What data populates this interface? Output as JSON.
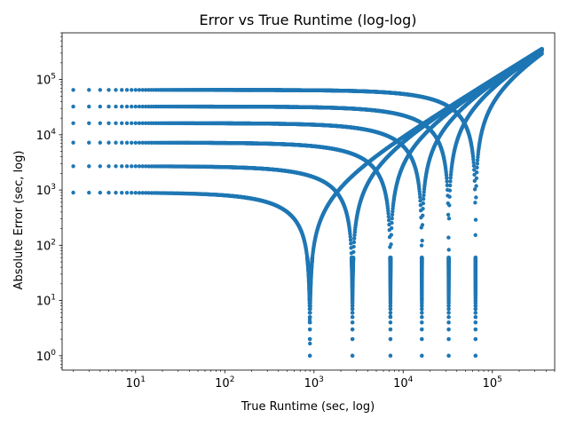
{
  "chart_data": {
    "type": "scatter",
    "title": "Error vs True Runtime (log-log)",
    "xlabel": "True Runtime (sec, log)",
    "ylabel": "Absolute Error (sec, log)",
    "xscale": "log",
    "yscale": "log",
    "xlim": [
      1.5,
      500000
    ],
    "ylim": [
      0.55,
      700000
    ],
    "grid": false,
    "legend": "none",
    "point_color": "#1f77b4",
    "x_ticks": [
      {
        "value": 10,
        "base": "10",
        "exp": "1"
      },
      {
        "value": 100,
        "base": "10",
        "exp": "2"
      },
      {
        "value": 1000,
        "base": "10",
        "exp": "3"
      },
      {
        "value": 10000,
        "base": "10",
        "exp": "4"
      },
      {
        "value": 100000,
        "base": "10",
        "exp": "5"
      }
    ],
    "y_ticks": [
      {
        "value": 1,
        "base": "10",
        "exp": "0"
      },
      {
        "value": 10,
        "base": "10",
        "exp": "1"
      },
      {
        "value": 100,
        "base": "10",
        "exp": "2"
      },
      {
        "value": 1000,
        "base": "10",
        "exp": "3"
      },
      {
        "value": 10000,
        "base": "10",
        "exp": "4"
      },
      {
        "value": 100000,
        "base": "10",
        "exp": "5"
      }
    ],
    "series": [
      {
        "estimate": 900,
        "x_range": [
          2,
          360000
        ]
      },
      {
        "estimate": 2700,
        "x_range": [
          2,
          360000
        ]
      },
      {
        "estimate": 7200,
        "x_range": [
          2,
          360000
        ]
      },
      {
        "estimate": 16200,
        "x_range": [
          2,
          360000
        ]
      },
      {
        "estimate": 32400,
        "x_range": [
          2,
          360000
        ]
      },
      {
        "estimate": 64800,
        "x_range": [
          2,
          360000
        ]
      }
    ]
  }
}
